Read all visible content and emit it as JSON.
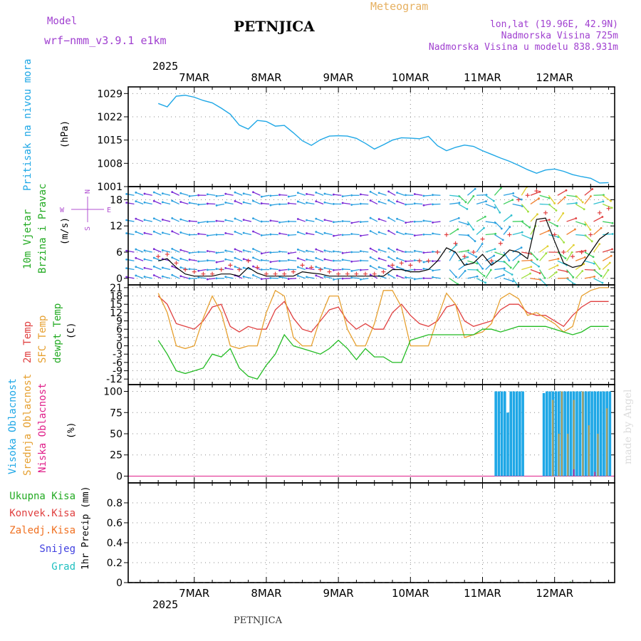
{
  "header": {
    "model_label": "Model",
    "model_name": "wrf−nmm_v3.9.1  e1km",
    "station": "PETNJICA",
    "meteogram": "Meteogram",
    "lonlat": "lon,lat (19.96E, 42.9N)",
    "altitude": "Nadmorska Visina 725m",
    "model_altitude": "Nadmorska Visina u modelu 838.931m",
    "year_top": "2025",
    "year_bottom": "2025",
    "footer_station": "PETNJICA",
    "watermark": "made by Angel"
  },
  "colors": {
    "pressure": "#1ea7e6",
    "wind_label": "#22aa22",
    "temp2m": "#e04040",
    "sfc_temp": "#e6a030",
    "dewpt": "#22bb22",
    "high_cloud": "#1ea7e6",
    "mid_cloud": "#e6a030",
    "low_cloud": "#e0208a",
    "total_precip": "#22aa22",
    "conv_precip": "#e04040",
    "frz_precip": "#f07020",
    "snow": "#4040e0",
    "hail": "#20c0c0",
    "header_purple": "#a040d0",
    "meteogram_title": "#e6b060"
  },
  "chart_data": [
    {
      "type": "line",
      "id": "pressure",
      "ylabel_left": "Pritisak na nivou mora",
      "ylabel_unit": "(hPa)",
      "ylim": [
        1001,
        1031
      ],
      "yticks": [
        1001,
        1008,
        1015,
        1022,
        1029
      ],
      "x_labels": [
        "7MAR",
        "8MAR",
        "9MAR",
        "10MAR",
        "11MAR",
        "12MAR"
      ],
      "grid": true,
      "series": [
        {
          "x": [
            0,
            3,
            6,
            9,
            12,
            15,
            18,
            21,
            24,
            27,
            30,
            33,
            36,
            39,
            42,
            45,
            48,
            51,
            54,
            57,
            60,
            63,
            66,
            69,
            72,
            75,
            78,
            81,
            84,
            87,
            90,
            93,
            96,
            99,
            102,
            105,
            108,
            111,
            114,
            117,
            120,
            123,
            126,
            129,
            132,
            135,
            138,
            141,
            144,
            147,
            150
          ],
          "values": [
            1026,
            1025,
            1028.2,
            1028.5,
            1027.9,
            1026.9,
            1026.2,
            1024.6,
            1022.8,
            1019.5,
            1018.3,
            1020.9,
            1020.6,
            1019.2,
            1019.4,
            1017.2,
            1014.8,
            1013.4,
            1015.1,
            1016.2,
            1016.3,
            1016.2,
            1015.5,
            1014.0,
            1012.3,
            1013.6,
            1015.0,
            1015.7,
            1015.6,
            1015.4,
            1016.1,
            1013.3,
            1011.8,
            1012.8,
            1013.5,
            1013.1,
            1011.8,
            1010.7,
            1009.6,
            1008.6,
            1007.4,
            1006.1,
            1005.0,
            1006.0,
            1006.3,
            1005.6,
            1004.6,
            1004.0,
            1003.5,
            1002.1,
            1002.2
          ]
        }
      ]
    },
    {
      "type": "line",
      "id": "wind",
      "ylabel_left_1": "10m Vjetar",
      "ylabel_left_2": "Brzina i Pravac",
      "ylabel_unit": "(m/s)",
      "compass": {
        "w": "W",
        "e": "E",
        "n": "N",
        "s": "S"
      },
      "ylim": [
        -1.5,
        21
      ],
      "yticks": [
        0,
        6,
        12,
        18
      ],
      "grid": true,
      "series": [
        {
          "name": "wind speed",
          "x": [
            0,
            3,
            6,
            9,
            12,
            15,
            18,
            21,
            24,
            27,
            30,
            33,
            36,
            39,
            42,
            45,
            48,
            51,
            54,
            57,
            60,
            63,
            66,
            69,
            72,
            75,
            78,
            81,
            84,
            87,
            90,
            93,
            96,
            99,
            102,
            105,
            108,
            111,
            114,
            117,
            120,
            123,
            126,
            129,
            132,
            135,
            138,
            141,
            144,
            147,
            150
          ],
          "values": [
            4,
            4.5,
            2.5,
            1,
            0.5,
            0.5,
            0.5,
            1,
            1,
            0.5,
            2.5,
            1.2,
            0.5,
            0.5,
            0.5,
            0.5,
            1.5,
            1.2,
            1,
            0.5,
            0.5,
            0.5,
            0.5,
            0.5,
            0.5,
            0.5,
            2,
            2,
            1.5,
            1.5,
            2,
            4,
            7,
            6,
            3,
            3.5,
            5.5,
            3,
            4.5,
            6.5,
            6,
            4.5,
            13.5,
            13.8,
            8.5,
            3.5,
            2.5,
            3,
            6,
            9,
            10.5
          ]
        },
        {
          "name": "wind gust",
          "x": [
            0,
            3,
            6,
            9,
            12,
            15,
            18,
            21,
            24,
            27,
            30,
            33,
            36,
            39,
            42,
            45,
            48,
            51,
            54,
            57,
            60,
            63,
            66,
            69,
            72,
            75,
            78,
            81,
            84,
            87,
            90,
            93,
            96,
            99,
            102,
            105,
            108,
            111,
            114,
            117,
            120,
            123,
            126,
            129,
            132,
            135,
            138,
            141,
            144,
            147,
            150
          ],
          "values": [
            5,
            5.5,
            3.5,
            2,
            1.5,
            1,
            1,
            2,
            3,
            2,
            4,
            2.5,
            1,
            1,
            1,
            1.5,
            3,
            2.5,
            2,
            1.5,
            1,
            1,
            1,
            1,
            1,
            1.5,
            3,
            3.5,
            3,
            4,
            4,
            6,
            10,
            8,
            5,
            6,
            9,
            4,
            8,
            10,
            18,
            19,
            20,
            15,
            10,
            6,
            5,
            6,
            10,
            15,
            16
          ]
        }
      ],
      "barb_rows": [
        0,
        2,
        4,
        6,
        10,
        13,
        17,
        19
      ]
    },
    {
      "type": "line",
      "id": "temperature",
      "ylabel_1": "2m Temp",
      "ylabel_2": "SFC Temp",
      "ylabel_3": "dewpt Temp",
      "ylabel_unit": "(C)",
      "ylim": [
        -14,
        22
      ],
      "yticks": [
        -12,
        -9,
        -6,
        -3,
        0,
        3,
        6,
        9,
        12,
        15,
        18,
        21
      ],
      "grid": true,
      "series": [
        {
          "name": "2m Temp",
          "x": [
            0,
            3,
            6,
            9,
            12,
            15,
            18,
            21,
            24,
            27,
            30,
            33,
            36,
            39,
            42,
            45,
            48,
            51,
            54,
            57,
            60,
            63,
            66,
            69,
            72,
            75,
            78,
            81,
            84,
            87,
            90,
            93,
            96,
            99,
            102,
            105,
            108,
            111,
            114,
            117,
            120,
            123,
            126,
            129,
            132,
            135,
            138,
            141,
            144,
            147,
            150
          ],
          "values": [
            18,
            15,
            8,
            7,
            6,
            9,
            14,
            15,
            7,
            5,
            7,
            6,
            6,
            13,
            16,
            10,
            6,
            5,
            9,
            13,
            14,
            9,
            6,
            8,
            6,
            6,
            12,
            15,
            11,
            8,
            7,
            9,
            14,
            15,
            9,
            7,
            8,
            9,
            13,
            15,
            15,
            12,
            11,
            11,
            9,
            7,
            11,
            14,
            16,
            16,
            16
          ]
        },
        {
          "name": "SFC Temp",
          "x": [
            0,
            3,
            6,
            9,
            12,
            15,
            18,
            21,
            24,
            27,
            30,
            33,
            36,
            39,
            42,
            45,
            48,
            51,
            54,
            57,
            60,
            63,
            66,
            69,
            72,
            75,
            78,
            81,
            84,
            87,
            90,
            93,
            96,
            99,
            102,
            105,
            108,
            111,
            114,
            117,
            120,
            123,
            126,
            129,
            132,
            135,
            138,
            141,
            144,
            147,
            150
          ],
          "values": [
            19,
            12,
            0,
            -1,
            0,
            10,
            18,
            12,
            0,
            -1,
            0,
            0,
            12,
            20,
            18,
            3,
            0,
            0,
            10,
            18,
            18,
            6,
            0,
            0,
            8,
            20,
            20,
            14,
            0,
            0,
            0,
            10,
            19,
            15,
            3,
            4,
            5,
            8,
            17,
            19,
            17,
            11,
            12,
            10,
            8,
            5,
            7,
            18,
            20,
            21,
            21
          ]
        },
        {
          "name": "dewpt Temp",
          "x": [
            0,
            3,
            6,
            9,
            12,
            15,
            18,
            21,
            24,
            27,
            30,
            33,
            36,
            39,
            42,
            45,
            48,
            51,
            54,
            57,
            60,
            63,
            66,
            69,
            72,
            75,
            78,
            81,
            84,
            87,
            90,
            93,
            96,
            99,
            102,
            105,
            108,
            111,
            114,
            117,
            120,
            123,
            126,
            129,
            132,
            135,
            138,
            141,
            144,
            147,
            150
          ],
          "values": [
            2,
            -3,
            -9,
            -10,
            -9,
            -8,
            -3,
            -4,
            -1,
            -8,
            -11,
            -12,
            -7,
            -3,
            4,
            0,
            -1,
            -2,
            -3,
            -1,
            2,
            -1,
            -5,
            -1,
            -4,
            -4,
            -6,
            -6,
            2,
            3,
            4,
            4,
            4,
            4,
            4,
            4,
            6,
            6,
            5,
            6,
            7,
            7,
            7,
            7,
            6,
            5,
            4,
            5,
            7,
            7,
            7
          ]
        }
      ]
    },
    {
      "type": "bar",
      "id": "clouds",
      "ylabel_1": "Visoka Oblacnost",
      "ylabel_2": "Srednja Oblacnost",
      "ylabel_3": "Niska Oblacnost",
      "ylabel_unit": "(%)",
      "ylim": [
        -8,
        108
      ],
      "yticks": [
        0,
        25,
        50,
        75,
        100
      ],
      "grid": true,
      "series": [
        {
          "name": "high cloud",
          "x": [
            112,
            113,
            114,
            115,
            116,
            117,
            118,
            119,
            120,
            121,
            122,
            123,
            124,
            125,
            126,
            127,
            128,
            129,
            130,
            131,
            132,
            133,
            134,
            135,
            136,
            137,
            138,
            139,
            140,
            141,
            142,
            143,
            144,
            145,
            146,
            147,
            148,
            149,
            150
          ],
          "values": [
            100,
            100,
            100,
            100,
            75,
            100,
            100,
            100,
            100,
            100,
            0,
            0,
            0,
            0,
            0,
            0,
            98,
            100,
            100,
            100,
            100,
            100,
            100,
            100,
            100,
            100,
            100,
            100,
            100,
            100,
            100,
            100,
            100,
            100,
            100,
            100,
            100,
            100,
            100
          ]
        },
        {
          "name": "mid cloud",
          "x": [
            131,
            133,
            134,
            136,
            138,
            141,
            143,
            146,
            149
          ],
          "values": [
            90,
            50,
            100,
            50,
            90,
            100,
            60,
            50,
            80
          ]
        },
        {
          "name": "low cloud",
          "x": [
            138,
            145
          ],
          "values": [
            8,
            5
          ]
        }
      ]
    },
    {
      "type": "bar",
      "id": "precip",
      "ylabels": [
        "Ukupna Kisa",
        "Konvek.Kisa",
        "Zaledj.Kisa",
        "Snijeg",
        "Grad"
      ],
      "ylabel_unit": "1hr Precip (mm)",
      "ylim": [
        0,
        1
      ],
      "yticks": [
        0,
        0.2,
        0.4,
        0.6,
        0.8
      ],
      "grid": true,
      "series": [
        {
          "name": "Ukupna Kisa",
          "x": [
            137
          ],
          "values": [
            0.01
          ]
        }
      ]
    }
  ]
}
